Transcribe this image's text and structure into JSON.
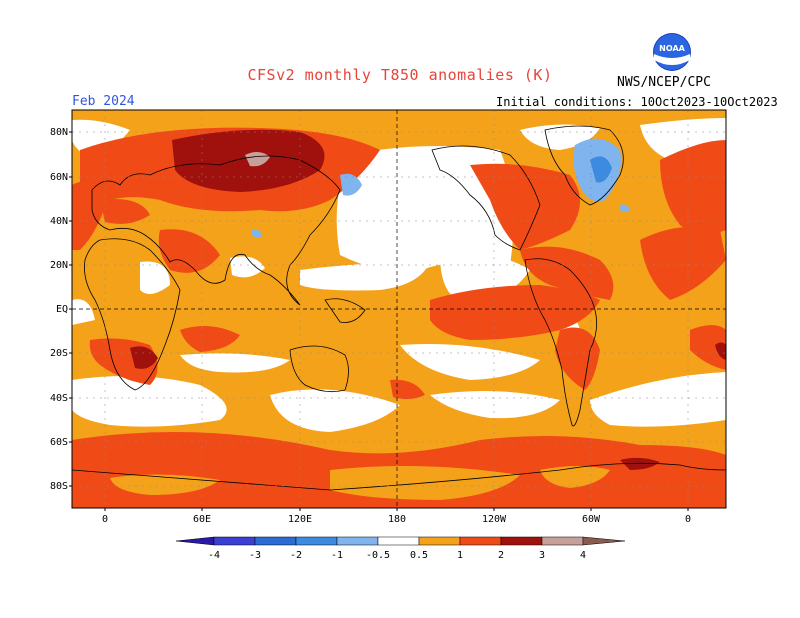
{
  "header": {
    "title": "CFSv2 monthly T850 anomalies (K)",
    "month": "Feb 2024",
    "initial_conditions": "Initial conditions: 10Oct2023-10Oct2023",
    "agency": "NWS/NCEP/CPC",
    "logo_text": "NOAA"
  },
  "map": {
    "lat_labels": [
      "80N",
      "60N",
      "40N",
      "20N",
      "EQ",
      "20S",
      "40S",
      "60S",
      "80S"
    ],
    "lon_labels": [
      "0",
      "60E",
      "120E",
      "180",
      "120W",
      "60W",
      "0"
    ],
    "colors": {
      "white": "#ffffff",
      "orange": "#f5a21b",
      "red_orange": "#f04b17",
      "dark_red": "#a0100c",
      "very_dark_red": "#7a0606",
      "pink_tan": "#c8a09a",
      "light_blue": "#7fb4ee",
      "blue": "#3c8be0"
    }
  },
  "colorbar": {
    "tick_labels": [
      "-4",
      "-3",
      "-2",
      "-1",
      "-0.5",
      "0.5",
      "1",
      "2",
      "3",
      "4"
    ],
    "colors": [
      "#2b1aa8",
      "#3b3fd3",
      "#2a6bd6",
      "#3c8be0",
      "#7fb4ee",
      "#ffffff",
      "#f5a21b",
      "#f04b17",
      "#d4260c",
      "#a0100c",
      "#c8a09a",
      "#8a5a50"
    ]
  }
}
